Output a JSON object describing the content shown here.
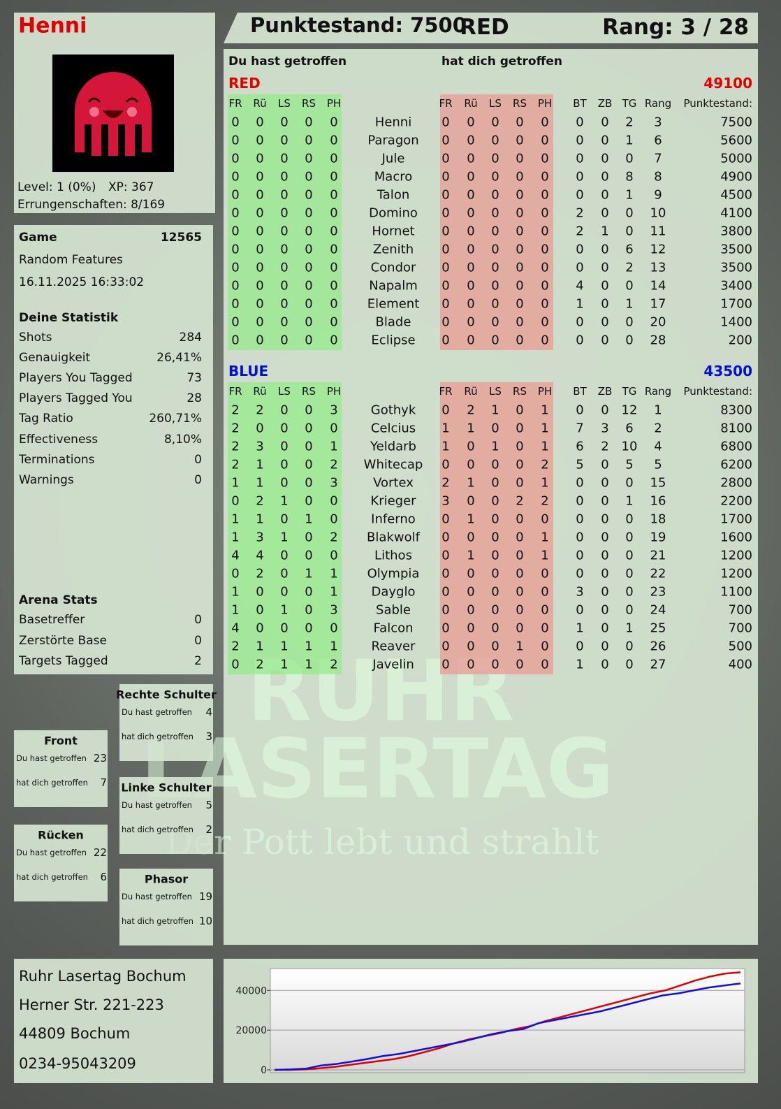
{
  "header": {
    "name": "Henni",
    "score": "Punktestand: 7500",
    "team": "RED",
    "rank": "Rang: 3 / 28"
  },
  "profile": {
    "level": "Level: 1 (0%)",
    "xp": "XP: 367",
    "achievements": "Errungenschaften: 8/169"
  },
  "game": {
    "label": "Game",
    "id": "12565",
    "mode": "Random Features",
    "date": "16.11.2025 16:33:02"
  },
  "stats": {
    "title": "Deine Statistik",
    "rows": [
      [
        "Shots",
        "284"
      ],
      [
        "Genauigkeit",
        "26,41%"
      ],
      [
        "Players You Tagged",
        "73"
      ],
      [
        "Players Tagged You",
        "28"
      ],
      [
        "Tag Ratio",
        "260,71%"
      ],
      [
        "Effectiveness",
        "8,10%"
      ],
      [
        "Terminations",
        "0"
      ],
      [
        "Warnings",
        "0"
      ]
    ]
  },
  "arena": {
    "title": "Arena Stats",
    "rows": [
      [
        "Basetreffer",
        "0"
      ],
      [
        "Zerstörte Base",
        "0"
      ],
      [
        "Targets Tagged",
        "2"
      ]
    ]
  },
  "zones": [
    {
      "title": "Rechte Schulter",
      "rows": [
        [
          "Du hast getroffen",
          "4"
        ],
        [
          "hat dich getroffen",
          "3"
        ]
      ]
    },
    {
      "title": "Front",
      "rows": [
        [
          "Du hast getroffen",
          "23"
        ],
        [
          "hat dich getroffen",
          "7"
        ]
      ]
    },
    {
      "title": "Linke Schulter",
      "rows": [
        [
          "Du hast getroffen",
          "5"
        ],
        [
          "hat dich getroffen",
          "2"
        ]
      ]
    },
    {
      "title": "Rücken",
      "rows": [
        [
          "Du hast getroffen",
          "22"
        ],
        [
          "hat dich getroffen",
          "6"
        ]
      ]
    },
    {
      "title": "Phasor",
      "rows": [
        [
          "Du hast getroffen",
          "19"
        ],
        [
          "hat dich getroffen",
          "10"
        ]
      ]
    }
  ],
  "address": [
    "Ruhr Lasertag Bochum",
    "Herner Str. 221-223",
    "44809 Bochum",
    "0234-95043209"
  ],
  "watermark": {
    "line1": "RUHR",
    "line2": "LASERTAG",
    "tagline": "Der Pott lebt und strahlt"
  },
  "table": {
    "hit_heading": "Du hast getroffen",
    "got_heading": "hat dich getroffen",
    "zone_columns": [
      "FR",
      "Rü",
      "LS",
      "RS",
      "PH"
    ],
    "stat_columns": [
      "BT",
      "ZB",
      "TG",
      "Rang",
      "Punktestand:"
    ],
    "teams": [
      {
        "name": "RED",
        "color": "#e00000",
        "total": 49100,
        "players": [
          {
            "name": "Henni",
            "hit": [
              0,
              0,
              0,
              0,
              0
            ],
            "got": [
              0,
              0,
              0,
              0,
              0
            ],
            "stats": [
              0,
              0,
              2,
              3,
              7500
            ]
          },
          {
            "name": "Paragon",
            "hit": [
              0,
              0,
              0,
              0,
              0
            ],
            "got": [
              0,
              0,
              0,
              0,
              0
            ],
            "stats": [
              0,
              0,
              1,
              6,
              5600
            ]
          },
          {
            "name": "Jule",
            "hit": [
              0,
              0,
              0,
              0,
              0
            ],
            "got": [
              0,
              0,
              0,
              0,
              0
            ],
            "stats": [
              0,
              0,
              0,
              7,
              5000
            ]
          },
          {
            "name": "Macro",
            "hit": [
              0,
              0,
              0,
              0,
              0
            ],
            "got": [
              0,
              0,
              0,
              0,
              0
            ],
            "stats": [
              0,
              0,
              8,
              8,
              4900
            ]
          },
          {
            "name": "Talon",
            "hit": [
              0,
              0,
              0,
              0,
              0
            ],
            "got": [
              0,
              0,
              0,
              0,
              0
            ],
            "stats": [
              0,
              0,
              1,
              9,
              4500
            ]
          },
          {
            "name": "Domino",
            "hit": [
              0,
              0,
              0,
              0,
              0
            ],
            "got": [
              0,
              0,
              0,
              0,
              0
            ],
            "stats": [
              2,
              0,
              0,
              10,
              4100
            ]
          },
          {
            "name": "Hornet",
            "hit": [
              0,
              0,
              0,
              0,
              0
            ],
            "got": [
              0,
              0,
              0,
              0,
              0
            ],
            "stats": [
              2,
              1,
              0,
              11,
              3800
            ]
          },
          {
            "name": "Zenith",
            "hit": [
              0,
              0,
              0,
              0,
              0
            ],
            "got": [
              0,
              0,
              0,
              0,
              0
            ],
            "stats": [
              0,
              0,
              6,
              12,
              3500
            ]
          },
          {
            "name": "Condor",
            "hit": [
              0,
              0,
              0,
              0,
              0
            ],
            "got": [
              0,
              0,
              0,
              0,
              0
            ],
            "stats": [
              0,
              0,
              2,
              13,
              3500
            ]
          },
          {
            "name": "Napalm",
            "hit": [
              0,
              0,
              0,
              0,
              0
            ],
            "got": [
              0,
              0,
              0,
              0,
              0
            ],
            "stats": [
              4,
              0,
              0,
              14,
              3400
            ]
          },
          {
            "name": "Element",
            "hit": [
              0,
              0,
              0,
              0,
              0
            ],
            "got": [
              0,
              0,
              0,
              0,
              0
            ],
            "stats": [
              1,
              0,
              1,
              17,
              1700
            ]
          },
          {
            "name": "Blade",
            "hit": [
              0,
              0,
              0,
              0,
              0
            ],
            "got": [
              0,
              0,
              0,
              0,
              0
            ],
            "stats": [
              0,
              0,
              0,
              20,
              1400
            ]
          },
          {
            "name": "Eclipse",
            "hit": [
              0,
              0,
              0,
              0,
              0
            ],
            "got": [
              0,
              0,
              0,
              0,
              0
            ],
            "stats": [
              0,
              0,
              0,
              28,
              200
            ]
          }
        ]
      },
      {
        "name": "BLUE",
        "color": "#0010d0",
        "total": 43500,
        "players": [
          {
            "name": "Gothyk",
            "hit": [
              2,
              2,
              0,
              0,
              3
            ],
            "got": [
              0,
              2,
              1,
              0,
              1
            ],
            "stats": [
              0,
              0,
              12,
              1,
              8300
            ]
          },
          {
            "name": "Celcius",
            "hit": [
              2,
              0,
              0,
              0,
              0
            ],
            "got": [
              1,
              1,
              0,
              0,
              1
            ],
            "stats": [
              7,
              3,
              6,
              2,
              8100
            ]
          },
          {
            "name": "Yeldarb",
            "hit": [
              2,
              3,
              0,
              0,
              1
            ],
            "got": [
              1,
              0,
              1,
              0,
              1
            ],
            "stats": [
              6,
              2,
              10,
              4,
              6800
            ]
          },
          {
            "name": "Whitecap",
            "hit": [
              2,
              1,
              0,
              0,
              2
            ],
            "got": [
              0,
              0,
              0,
              0,
              2
            ],
            "stats": [
              5,
              0,
              5,
              5,
              6200
            ]
          },
          {
            "name": "Vortex",
            "hit": [
              1,
              1,
              0,
              0,
              3
            ],
            "got": [
              2,
              1,
              0,
              0,
              1
            ],
            "stats": [
              0,
              0,
              0,
              15,
              2800
            ]
          },
          {
            "name": "Krieger",
            "hit": [
              0,
              2,
              1,
              0,
              0
            ],
            "got": [
              3,
              0,
              0,
              2,
              2
            ],
            "stats": [
              0,
              0,
              1,
              16,
              2200
            ]
          },
          {
            "name": "Inferno",
            "hit": [
              1,
              1,
              0,
              1,
              0
            ],
            "got": [
              0,
              1,
              0,
              0,
              0
            ],
            "stats": [
              0,
              0,
              0,
              18,
              1700
            ]
          },
          {
            "name": "Blakwolf",
            "hit": [
              1,
              3,
              1,
              0,
              2
            ],
            "got": [
              0,
              0,
              0,
              0,
              1
            ],
            "stats": [
              0,
              0,
              0,
              19,
              1600
            ]
          },
          {
            "name": "Lithos",
            "hit": [
              4,
              4,
              0,
              0,
              0
            ],
            "got": [
              0,
              1,
              0,
              0,
              1
            ],
            "stats": [
              0,
              0,
              0,
              21,
              1200
            ]
          },
          {
            "name": "Olympia",
            "hit": [
              0,
              2,
              0,
              1,
              1
            ],
            "got": [
              0,
              0,
              0,
              0,
              0
            ],
            "stats": [
              0,
              0,
              0,
              22,
              1200
            ]
          },
          {
            "name": "Dayglo",
            "hit": [
              1,
              0,
              0,
              0,
              1
            ],
            "got": [
              0,
              0,
              0,
              0,
              0
            ],
            "stats": [
              3,
              0,
              0,
              23,
              1100
            ]
          },
          {
            "name": "Sable",
            "hit": [
              1,
              0,
              1,
              0,
              3
            ],
            "got": [
              0,
              0,
              0,
              0,
              0
            ],
            "stats": [
              0,
              0,
              0,
              24,
              700
            ]
          },
          {
            "name": "Falcon",
            "hit": [
              4,
              0,
              0,
              0,
              0
            ],
            "got": [
              0,
              0,
              0,
              0,
              0
            ],
            "stats": [
              1,
              0,
              1,
              25,
              700
            ]
          },
          {
            "name": "Reaver",
            "hit": [
              2,
              1,
              1,
              1,
              1
            ],
            "got": [
              0,
              0,
              0,
              1,
              0
            ],
            "stats": [
              0,
              0,
              0,
              26,
              500
            ]
          },
          {
            "name": "Javelin",
            "hit": [
              0,
              2,
              1,
              1,
              2
            ],
            "got": [
              0,
              0,
              0,
              0,
              0
            ],
            "stats": [
              1,
              0,
              0,
              27,
              400
            ]
          }
        ]
      }
    ]
  },
  "chart_data": {
    "type": "line",
    "ylim": [
      0,
      51000
    ],
    "yticks": [
      0,
      20000,
      40000
    ],
    "grid": true,
    "series": [
      {
        "name": "RED",
        "color": "#e00000",
        "values": [
          0,
          0,
          200,
          800,
          1500,
          2500,
          3500,
          4500,
          5500,
          7000,
          9000,
          11000,
          13500,
          15500,
          17000,
          18500,
          20500,
          22000,
          24500,
          26500,
          28500,
          30500,
          32500,
          34500,
          36500,
          38500,
          40000,
          42500,
          45000,
          47000,
          48500,
          49100
        ]
      },
      {
        "name": "BLUE",
        "color": "#1010e0",
        "values": [
          0,
          200,
          600,
          2200,
          3000,
          4200,
          5500,
          7000,
          8000,
          9500,
          11000,
          12500,
          14000,
          16000,
          18000,
          19500,
          20500,
          23500,
          25000,
          26500,
          28000,
          29500,
          31500,
          33500,
          35500,
          37500,
          38500,
          40000,
          41500,
          42500,
          43500
        ]
      }
    ]
  }
}
